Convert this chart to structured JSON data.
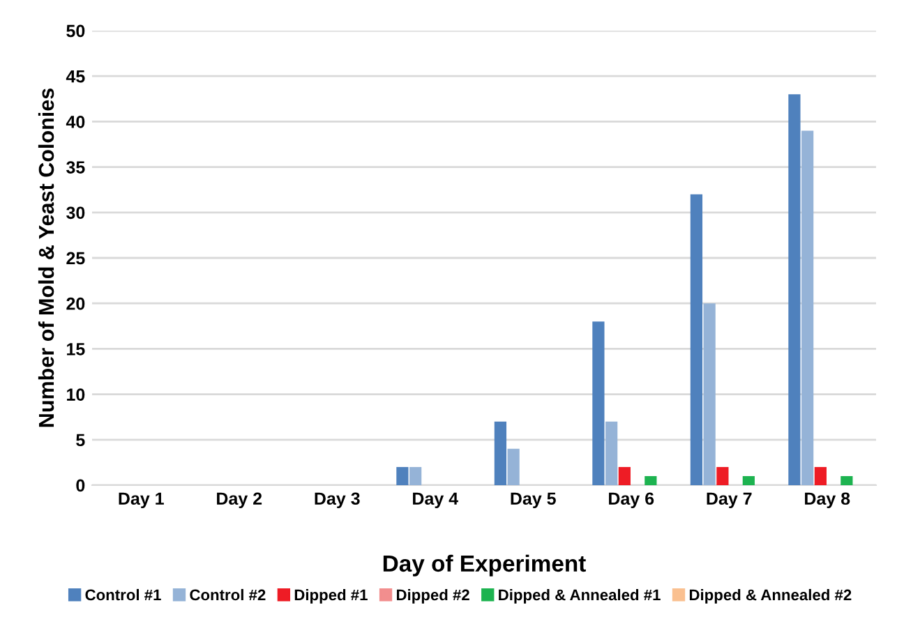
{
  "chart_data": {
    "type": "bar",
    "xlabel": "Day of Experiment",
    "ylabel": "Number of Mold & Yeast Colonies",
    "categories": [
      "Day 1",
      "Day 2",
      "Day 3",
      "Day 4",
      "Day 5",
      "Day 6",
      "Day 7",
      "Day 8"
    ],
    "series": [
      {
        "name": "Control #1",
        "color": "#4f81bd",
        "values": [
          0,
          0,
          0,
          2,
          7,
          18,
          32,
          43
        ]
      },
      {
        "name": "Control #2",
        "color": "#95b3d7",
        "values": [
          0,
          0,
          0,
          2,
          4,
          7,
          20,
          39
        ]
      },
      {
        "name": "Dipped #1",
        "color": "#ee1c25",
        "values": [
          0,
          0,
          0,
          0,
          0,
          2,
          2,
          2
        ]
      },
      {
        "name": "Dipped #2",
        "color": "#f28e8e",
        "values": [
          0,
          0,
          0,
          0,
          0,
          0,
          0,
          0
        ]
      },
      {
        "name": "Dipped & Annealed #1",
        "color": "#1db350",
        "values": [
          0,
          0,
          0,
          0,
          0,
          1,
          1,
          1
        ]
      },
      {
        "name": "Dipped & Annealed #2",
        "color": "#fac090",
        "values": [
          0,
          0,
          0,
          0,
          0,
          0,
          0,
          0
        ]
      }
    ],
    "ylim": [
      0,
      50
    ],
    "yticks": [
      0,
      5,
      10,
      15,
      20,
      25,
      30,
      35,
      40,
      45,
      50
    ],
    "grid": "y",
    "legend": "bottom"
  }
}
